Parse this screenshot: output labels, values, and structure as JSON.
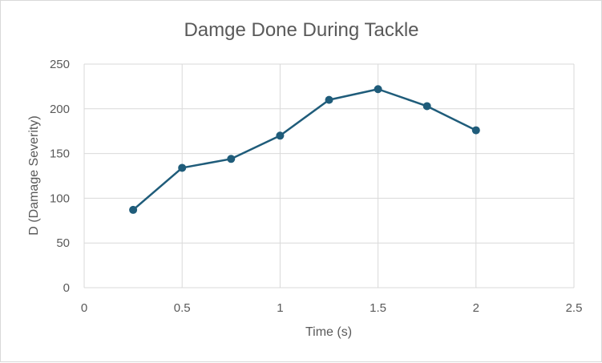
{
  "chart_data": {
    "type": "scatter",
    "title": "Damge Done During Tackle",
    "xlabel": "Time (s)",
    "ylabel": "D (Damage Severity)",
    "xlim": [
      0,
      2.5
    ],
    "ylim": [
      0,
      250
    ],
    "x_ticks": [
      0,
      0.5,
      1,
      1.5,
      2,
      2.5
    ],
    "y_ticks": [
      0,
      50,
      100,
      150,
      200,
      250
    ],
    "x_tick_labels": [
      "0",
      "0.5",
      "1",
      "1.5",
      "2",
      "2.5"
    ],
    "y_tick_labels": [
      "0",
      "50",
      "100",
      "150",
      "200",
      "250"
    ],
    "grid": true,
    "legend": "none",
    "color": "#1f5c7a",
    "series": [
      {
        "x": [
          0.25,
          0.5,
          0.75,
          1,
          1.25,
          1.5,
          1.75,
          2
        ],
        "y": [
          87,
          134,
          144,
          170,
          210,
          222,
          203,
          176
        ]
      }
    ]
  }
}
